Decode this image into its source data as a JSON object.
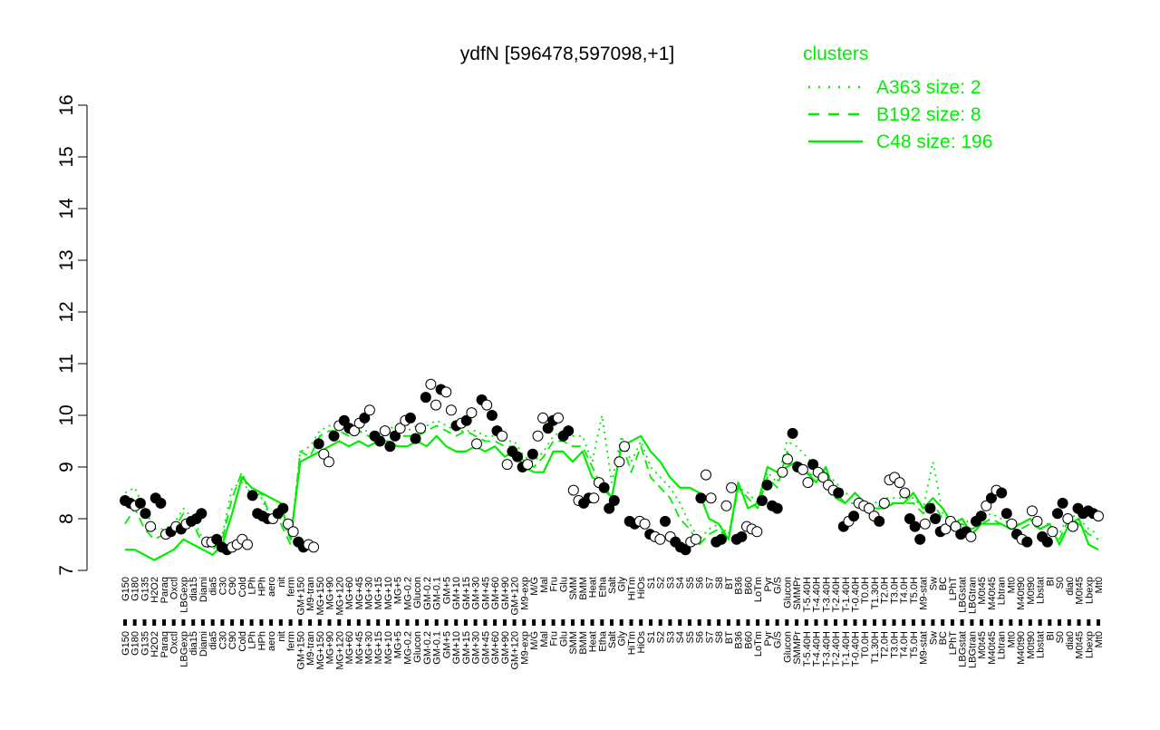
{
  "title": "ydfN [596478,597098,+1]",
  "legend": {
    "title": "clusters",
    "placement": "top-right",
    "color": "#00ee00",
    "entries": [
      {
        "label": "A363 size: 2",
        "style": "dotted"
      },
      {
        "label": "B192 size: 8",
        "style": "dashed"
      },
      {
        "label": "C48 size: 196",
        "style": "solid"
      }
    ]
  },
  "colors": {
    "line": "#00ee00",
    "point_fill": "#ffffff",
    "point_fill_highlight": "#000000",
    "axis": "#000000"
  },
  "chart_data": {
    "type": "line",
    "title": "ydfN [596478,597098,+1]",
    "xlabel": "",
    "ylabel": "",
    "ylim": [
      7,
      16
    ],
    "yticks": [
      7,
      8,
      9,
      10,
      11,
      12,
      13,
      14,
      15,
      16
    ],
    "grid": false,
    "xtick_labels": [
      "G150",
      "G180",
      "G135",
      "H2O2",
      "Paraq",
      "Oxctl",
      "LBGexp",
      "dia15",
      "Diami",
      "dia5",
      "C30",
      "C90",
      "Cold",
      "LPh",
      "HPh",
      "aero",
      "nit",
      "ferm",
      "GM+150",
      "M9-tran",
      "MG+150",
      "MG+90",
      "MG+120",
      "MG+60",
      "MG+45",
      "MG+30",
      "MG+15",
      "MG+10",
      "MG+5",
      "MG-0.2",
      "Glucon",
      "GM-0.2",
      "GM-0.1",
      "GM+5",
      "GM+10",
      "GM+15",
      "GM+30",
      "GM+45",
      "GM+60",
      "GM+90",
      "GM+120",
      "M9-exp",
      "M/G",
      "Mal",
      "Fru",
      "Glu",
      "SMM",
      "BMM",
      "Heat",
      "Etha",
      "Salt",
      "Gly",
      "HiTm",
      "HiOs",
      "S1",
      "S2",
      "S3",
      "S4",
      "S5",
      "S6",
      "S7",
      "S8",
      "BT",
      "B36",
      "B60",
      "LoTm",
      "Pyr",
      "G/S",
      "Glucon",
      "SMMPr",
      "T-5.40H",
      "T-4.40H",
      "T-3.40H",
      "T-2.40H",
      "T-1.40H",
      "T-0.40H",
      "T0.0H",
      "T1.30H",
      "T2.0H",
      "T3.0H",
      "T4.0H",
      "T5.0H",
      "M9-stat",
      "Sw",
      "BC",
      "LPhT",
      "LBGstat",
      "LBGtran",
      "M0t45",
      "M40t45",
      "Lbtran",
      "Mt0",
      "M40t90",
      "M0t90",
      "Lbstat",
      "BI",
      "S0",
      "dia0",
      "M0t45",
      "Lbexp",
      "Mt0"
    ],
    "series": [
      {
        "style": "solid",
        "values": [
          7.4,
          7.4,
          7.3,
          7.2,
          7.3,
          7.4,
          7.6,
          7.5,
          7.4,
          7.3,
          7.5,
          8.1,
          8.8,
          8.6,
          8.5,
          8.4,
          8.3,
          7.6,
          9.1,
          9.2,
          9.3,
          9.4,
          9.5,
          9.4,
          9.5,
          9.4,
          9.5,
          9.5,
          9.4,
          9.4,
          9.5,
          9.4,
          9.6,
          9.4,
          9.3,
          9.3,
          9.4,
          9.3,
          9.4,
          9.2,
          9.3,
          9.0,
          8.9,
          8.9,
          9.3,
          9.3,
          9.1,
          9.3,
          8.8,
          8.7,
          8.4,
          9.4,
          9.5,
          9.6,
          9.3,
          9.1,
          8.8,
          8.6,
          8.6,
          8.5,
          8.0,
          7.9,
          7.6,
          8.7,
          8.2,
          8.3,
          9.0,
          8.9,
          9.0,
          9.1,
          8.9,
          8.7,
          9.0,
          8.4,
          8.3,
          8.5,
          8.3,
          8.2,
          8.2,
          8.3,
          8.3,
          8.5,
          8.2,
          8.4,
          8.2,
          7.9,
          8.0,
          7.7,
          7.9,
          7.9,
          7.9,
          7.8,
          7.9,
          8.0,
          7.8,
          7.9,
          7.5,
          7.9,
          8.0,
          7.5,
          7.4
        ]
      },
      {
        "style": "dashed",
        "values": [
          7.9,
          8.2,
          7.8,
          7.6,
          7.7,
          7.8,
          8.1,
          7.9,
          7.5,
          7.4,
          7.6,
          8.4,
          8.9,
          8.4,
          8.5,
          8.0,
          7.9,
          7.5,
          9.3,
          9.2,
          9.6,
          9.7,
          9.7,
          9.6,
          9.7,
          9.6,
          9.5,
          9.7,
          9.6,
          9.6,
          9.6,
          9.7,
          9.8,
          9.7,
          9.6,
          9.7,
          9.6,
          9.5,
          9.5,
          9.4,
          9.4,
          9.1,
          9.0,
          9.2,
          9.5,
          9.5,
          9.4,
          9.4,
          9.0,
          8.6,
          8.4,
          9.5,
          8.9,
          9.4,
          8.8,
          8.6,
          8.4,
          8.0,
          7.8,
          7.5,
          7.7,
          7.8,
          7.6,
          8.6,
          8.4,
          8.2,
          8.8,
          8.6,
          9.3,
          9.0,
          8.9,
          8.8,
          8.7,
          8.5,
          8.3,
          8.3,
          8.2,
          8.2,
          8.3,
          8.3,
          8.3,
          8.3,
          8.1,
          8.3,
          8.0,
          7.8,
          7.9,
          7.8,
          7.9,
          8.0,
          7.9,
          7.8,
          7.8,
          7.9,
          7.8,
          7.8,
          7.6,
          8.0,
          7.9,
          7.7,
          7.6
        ]
      },
      {
        "style": "dotted",
        "values": [
          8.5,
          8.6,
          8.2,
          7.8,
          7.8,
          7.9,
          8.2,
          8.0,
          7.6,
          7.5,
          7.7,
          8.6,
          8.7,
          8.5,
          8.4,
          8.0,
          8.0,
          7.6,
          9.3,
          9.4,
          9.7,
          9.8,
          9.8,
          9.7,
          9.7,
          9.7,
          9.6,
          9.8,
          9.7,
          9.7,
          9.8,
          9.8,
          9.9,
          9.8,
          9.7,
          9.7,
          9.7,
          9.6,
          9.6,
          9.5,
          9.5,
          9.2,
          9.1,
          9.3,
          9.6,
          9.7,
          9.6,
          9.6,
          9.1,
          10.0,
          8.7,
          9.6,
          9.1,
          9.5,
          9.0,
          8.8,
          8.6,
          8.3,
          7.9,
          7.6,
          7.8,
          7.9,
          7.7,
          8.6,
          8.5,
          8.3,
          8.9,
          8.7,
          9.5,
          9.4,
          9.2,
          9.0,
          8.9,
          8.7,
          8.5,
          8.4,
          8.3,
          8.3,
          8.4,
          8.4,
          8.4,
          8.4,
          8.2,
          9.1,
          8.1,
          7.9,
          8.0,
          7.9,
          8.0,
          8.1,
          8.0,
          7.9,
          7.9,
          8.0,
          7.9,
          7.9,
          7.7,
          8.1,
          8.0,
          7.8,
          7.7
        ]
      }
    ],
    "points": [
      {
        "y": 8.35,
        "highlight": true
      },
      {
        "y": 8.3,
        "highlight": true
      },
      {
        "y": 8.25,
        "highlight": false
      },
      {
        "y": 8.3,
        "highlight": true
      },
      {
        "y": 8.1,
        "highlight": true
      },
      {
        "y": 7.85,
        "highlight": false
      },
      {
        "y": 8.4,
        "highlight": true
      },
      {
        "y": 8.3,
        "highlight": true
      },
      {
        "y": 7.7,
        "highlight": false
      },
      {
        "y": 7.75,
        "highlight": true
      },
      {
        "y": 7.85,
        "highlight": false
      },
      {
        "y": 7.8,
        "highlight": true
      },
      {
        "y": 7.9,
        "highlight": false
      },
      {
        "y": 7.95,
        "highlight": true
      },
      {
        "y": 8.0,
        "highlight": true
      },
      {
        "y": 8.1,
        "highlight": true
      },
      {
        "y": 7.55,
        "highlight": false
      },
      {
        "y": 7.55,
        "highlight": false
      },
      {
        "y": 7.6,
        "highlight": true
      },
      {
        "y": 7.45,
        "highlight": true
      },
      {
        "y": 7.4,
        "highlight": true
      },
      {
        "y": 7.45,
        "highlight": false
      },
      {
        "y": 7.5,
        "highlight": false
      },
      {
        "y": 7.6,
        "highlight": false
      },
      {
        "y": 7.5,
        "highlight": false
      },
      {
        "y": 8.45,
        "highlight": true
      },
      {
        "y": 8.1,
        "highlight": true
      },
      {
        "y": 8.05,
        "highlight": true
      },
      {
        "y": 8.0,
        "highlight": true
      },
      {
        "y": 8.0,
        "highlight": false
      },
      {
        "y": 8.1,
        "highlight": true
      },
      {
        "y": 8.2,
        "highlight": true
      },
      {
        "y": 7.9,
        "highlight": false
      },
      {
        "y": 7.75,
        "highlight": false
      },
      {
        "y": 7.55,
        "highlight": true
      },
      {
        "y": 7.45,
        "highlight": true
      },
      {
        "y": 7.5,
        "highlight": false
      },
      {
        "y": 7.45,
        "highlight": false
      },
      {
        "y": 9.45,
        "highlight": true
      },
      {
        "y": 9.25,
        "highlight": false
      },
      {
        "y": 9.1,
        "highlight": false
      },
      {
        "y": 9.6,
        "highlight": true
      },
      {
        "y": 9.8,
        "highlight": false
      },
      {
        "y": 9.9,
        "highlight": true
      },
      {
        "y": 9.75,
        "highlight": true
      },
      {
        "y": 9.7,
        "highlight": false
      },
      {
        "y": 9.85,
        "highlight": false
      },
      {
        "y": 9.95,
        "highlight": true
      },
      {
        "y": 10.1,
        "highlight": false
      },
      {
        "y": 9.6,
        "highlight": true
      },
      {
        "y": 9.5,
        "highlight": true
      },
      {
        "y": 9.7,
        "highlight": false
      },
      {
        "y": 9.4,
        "highlight": true
      },
      {
        "y": 9.6,
        "highlight": true
      },
      {
        "y": 9.75,
        "highlight": false
      },
      {
        "y": 9.9,
        "highlight": false
      },
      {
        "y": 9.95,
        "highlight": true
      },
      {
        "y": 9.55,
        "highlight": true
      },
      {
        "y": 9.75,
        "highlight": false
      },
      {
        "y": 10.35,
        "highlight": true
      },
      {
        "y": 10.6,
        "highlight": false
      },
      {
        "y": 10.2,
        "highlight": false
      },
      {
        "y": 10.5,
        "highlight": true
      },
      {
        "y": 10.45,
        "highlight": false
      },
      {
        "y": 10.1,
        "highlight": false
      },
      {
        "y": 9.8,
        "highlight": true
      },
      {
        "y": 9.85,
        "highlight": false
      },
      {
        "y": 9.9,
        "highlight": true
      },
      {
        "y": 10.05,
        "highlight": false
      },
      {
        "y": 9.45,
        "highlight": false
      },
      {
        "y": 10.3,
        "highlight": true
      },
      {
        "y": 10.2,
        "highlight": false
      },
      {
        "y": 10.0,
        "highlight": true
      },
      {
        "y": 9.7,
        "highlight": true
      },
      {
        "y": 9.6,
        "highlight": false
      },
      {
        "y": 9.05,
        "highlight": false
      },
      {
        "y": 9.3,
        "highlight": true
      },
      {
        "y": 9.2,
        "highlight": true
      },
      {
        "y": 9.0,
        "highlight": true
      },
      {
        "y": 9.05,
        "highlight": false
      },
      {
        "y": 9.25,
        "highlight": true
      },
      {
        "y": 9.6,
        "highlight": false
      },
      {
        "y": 9.95,
        "highlight": false
      },
      {
        "y": 9.75,
        "highlight": true
      },
      {
        "y": 9.9,
        "highlight": true
      },
      {
        "y": 9.95,
        "highlight": false
      },
      {
        "y": 9.6,
        "highlight": true
      },
      {
        "y": 9.7,
        "highlight": true
      },
      {
        "y": 8.55,
        "highlight": false
      },
      {
        "y": 8.35,
        "highlight": false
      },
      {
        "y": 8.3,
        "highlight": true
      },
      {
        "y": 8.4,
        "highlight": true
      },
      {
        "y": 8.4,
        "highlight": false
      },
      {
        "y": 8.7,
        "highlight": false
      },
      {
        "y": 8.6,
        "highlight": true
      },
      {
        "y": 8.2,
        "highlight": true
      },
      {
        "y": 8.35,
        "highlight": true
      },
      {
        "y": 9.1,
        "highlight": false
      },
      {
        "y": 9.4,
        "highlight": false
      },
      {
        "y": 7.95,
        "highlight": true
      },
      {
        "y": 7.9,
        "highlight": true
      },
      {
        "y": 7.95,
        "highlight": false
      },
      {
        "y": 7.9,
        "highlight": false
      },
      {
        "y": 7.7,
        "highlight": true
      },
      {
        "y": 7.65,
        "highlight": false
      },
      {
        "y": 7.6,
        "highlight": false
      },
      {
        "y": 7.95,
        "highlight": true
      },
      {
        "y": 7.65,
        "highlight": false
      },
      {
        "y": 7.55,
        "highlight": true
      },
      {
        "y": 7.45,
        "highlight": true
      },
      {
        "y": 7.4,
        "highlight": true
      },
      {
        "y": 7.55,
        "highlight": false
      },
      {
        "y": 7.6,
        "highlight": false
      },
      {
        "y": 8.4,
        "highlight": true
      },
      {
        "y": 8.85,
        "highlight": false
      },
      {
        "y": 8.4,
        "highlight": false
      },
      {
        "y": 7.55,
        "highlight": true
      },
      {
        "y": 7.6,
        "highlight": true
      },
      {
        "y": 8.25,
        "highlight": false
      },
      {
        "y": 8.6,
        "highlight": false
      },
      {
        "y": 7.6,
        "highlight": true
      },
      {
        "y": 7.65,
        "highlight": true
      },
      {
        "y": 7.85,
        "highlight": false
      },
      {
        "y": 7.8,
        "highlight": false
      },
      {
        "y": 7.75,
        "highlight": false
      },
      {
        "y": 8.35,
        "highlight": true
      },
      {
        "y": 8.65,
        "highlight": true
      },
      {
        "y": 8.25,
        "highlight": true
      },
      {
        "y": 8.2,
        "highlight": true
      },
      {
        "y": 8.9,
        "highlight": false
      },
      {
        "y": 9.15,
        "highlight": false
      },
      {
        "y": 9.65,
        "highlight": true
      },
      {
        "y": 9.0,
        "highlight": true
      },
      {
        "y": 8.95,
        "highlight": false
      },
      {
        "y": 8.7,
        "highlight": false
      },
      {
        "y": 9.05,
        "highlight": true
      },
      {
        "y": 8.9,
        "highlight": false
      },
      {
        "y": 8.8,
        "highlight": false
      },
      {
        "y": 8.65,
        "highlight": false
      },
      {
        "y": 8.55,
        "highlight": false
      },
      {
        "y": 8.5,
        "highlight": true
      },
      {
        "y": 7.85,
        "highlight": true
      },
      {
        "y": 7.95,
        "highlight": false
      },
      {
        "y": 8.05,
        "highlight": true
      },
      {
        "y": 8.3,
        "highlight": false
      },
      {
        "y": 8.25,
        "highlight": false
      },
      {
        "y": 8.2,
        "highlight": false
      },
      {
        "y": 8.05,
        "highlight": false
      },
      {
        "y": 7.95,
        "highlight": true
      },
      {
        "y": 8.3,
        "highlight": false
      },
      {
        "y": 8.75,
        "highlight": false
      },
      {
        "y": 8.8,
        "highlight": false
      },
      {
        "y": 8.7,
        "highlight": false
      },
      {
        "y": 8.5,
        "highlight": false
      },
      {
        "y": 8.0,
        "highlight": true
      },
      {
        "y": 7.85,
        "highlight": true
      },
      {
        "y": 7.6,
        "highlight": true
      },
      {
        "y": 7.9,
        "highlight": false
      },
      {
        "y": 8.2,
        "highlight": true
      },
      {
        "y": 8.0,
        "highlight": true
      },
      {
        "y": 7.75,
        "highlight": true
      },
      {
        "y": 7.8,
        "highlight": false
      },
      {
        "y": 7.95,
        "highlight": false
      },
      {
        "y": 7.85,
        "highlight": false
      },
      {
        "y": 7.7,
        "highlight": true
      },
      {
        "y": 7.75,
        "highlight": true
      },
      {
        "y": 7.65,
        "highlight": false
      },
      {
        "y": 7.95,
        "highlight": true
      },
      {
        "y": 8.05,
        "highlight": true
      },
      {
        "y": 8.25,
        "highlight": false
      },
      {
        "y": 8.4,
        "highlight": true
      },
      {
        "y": 8.55,
        "highlight": false
      },
      {
        "y": 8.5,
        "highlight": true
      },
      {
        "y": 8.1,
        "highlight": true
      },
      {
        "y": 7.9,
        "highlight": false
      },
      {
        "y": 7.7,
        "highlight": true
      },
      {
        "y": 7.6,
        "highlight": false
      },
      {
        "y": 7.55,
        "highlight": true
      },
      {
        "y": 8.15,
        "highlight": false
      },
      {
        "y": 7.95,
        "highlight": false
      },
      {
        "y": 7.65,
        "highlight": true
      },
      {
        "y": 7.55,
        "highlight": true
      },
      {
        "y": 7.75,
        "highlight": false
      },
      {
        "y": 8.1,
        "highlight": true
      },
      {
        "y": 8.3,
        "highlight": true
      },
      {
        "y": 8.0,
        "highlight": false
      },
      {
        "y": 7.85,
        "highlight": false
      },
      {
        "y": 8.2,
        "highlight": true
      },
      {
        "y": 8.1,
        "highlight": true
      },
      {
        "y": 8.15,
        "highlight": true
      },
      {
        "y": 8.1,
        "highlight": true
      },
      {
        "y": 8.05,
        "highlight": false
      }
    ]
  }
}
